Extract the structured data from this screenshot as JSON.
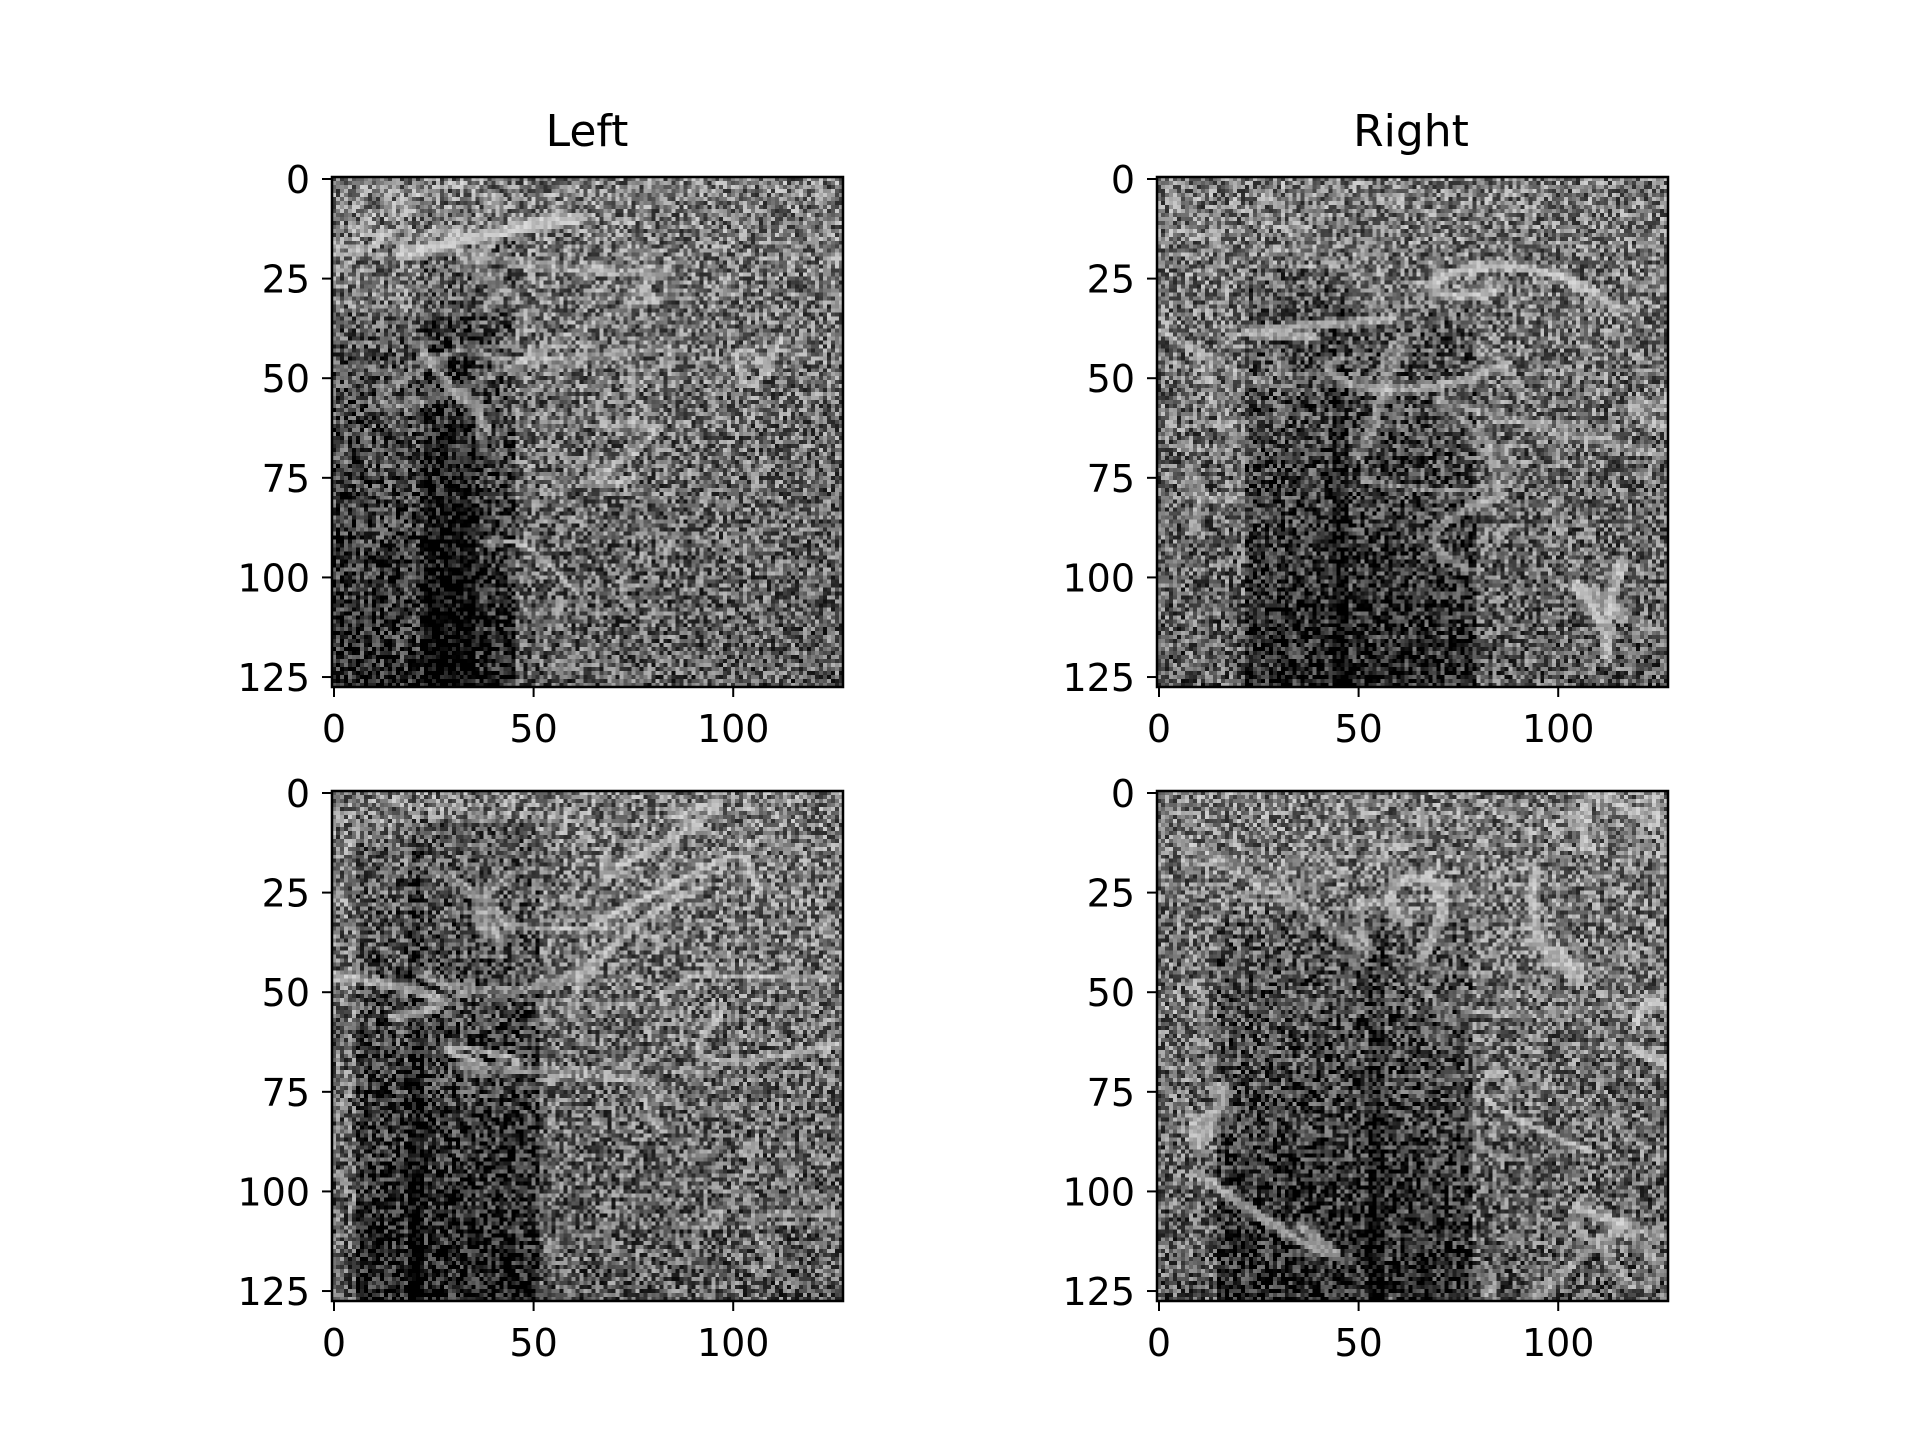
{
  "titles": {
    "left": "Left",
    "right": "Right"
  },
  "x_ticks": [
    "0",
    "50",
    "100"
  ],
  "y_ticks": [
    "0",
    "25",
    "50",
    "75",
    "100",
    "125"
  ],
  "panels": [
    {
      "name": "left-top",
      "seed": 11
    },
    {
      "name": "right-top",
      "seed": 23
    },
    {
      "name": "left-bottom",
      "seed": 37
    },
    {
      "name": "right-bottom",
      "seed": 51
    }
  ],
  "colormap": "gray"
}
